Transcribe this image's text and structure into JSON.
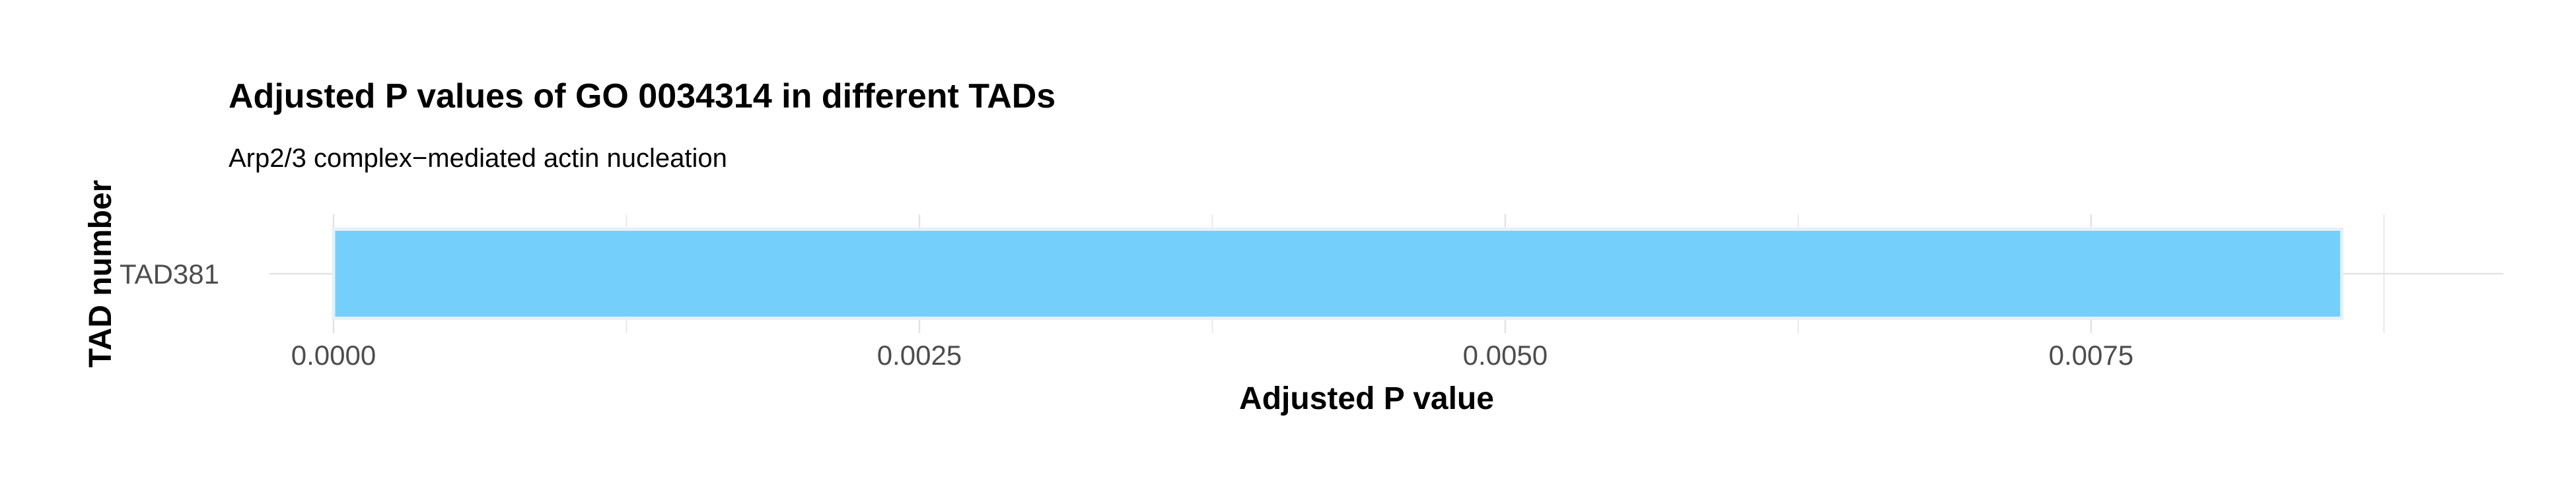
{
  "chart_data": {
    "type": "bar",
    "orientation": "horizontal",
    "title": "Adjusted P values of GO 0034314 in different TADs",
    "subtitle": "Arp2/3 complex−mediated actin nucleation",
    "xlabel": "Adjusted P value",
    "ylabel": "TAD number",
    "categories": [
      "TAD381"
    ],
    "values": [
      0.00857
    ],
    "xlim": [
      0,
      0.009
    ],
    "xticks": [
      0.0,
      0.0025,
      0.005,
      0.0075
    ],
    "xtick_labels": [
      "0.0000",
      "0.0025",
      "0.0050",
      "0.0075"
    ],
    "grid": true,
    "legend": "none",
    "colors": {
      "bar_fill": "#75CFFB",
      "bar_edge": "#E4F1F8",
      "grid": "#E3E3E3",
      "text": "#000000",
      "tick_text": "#4D4D4D"
    }
  }
}
